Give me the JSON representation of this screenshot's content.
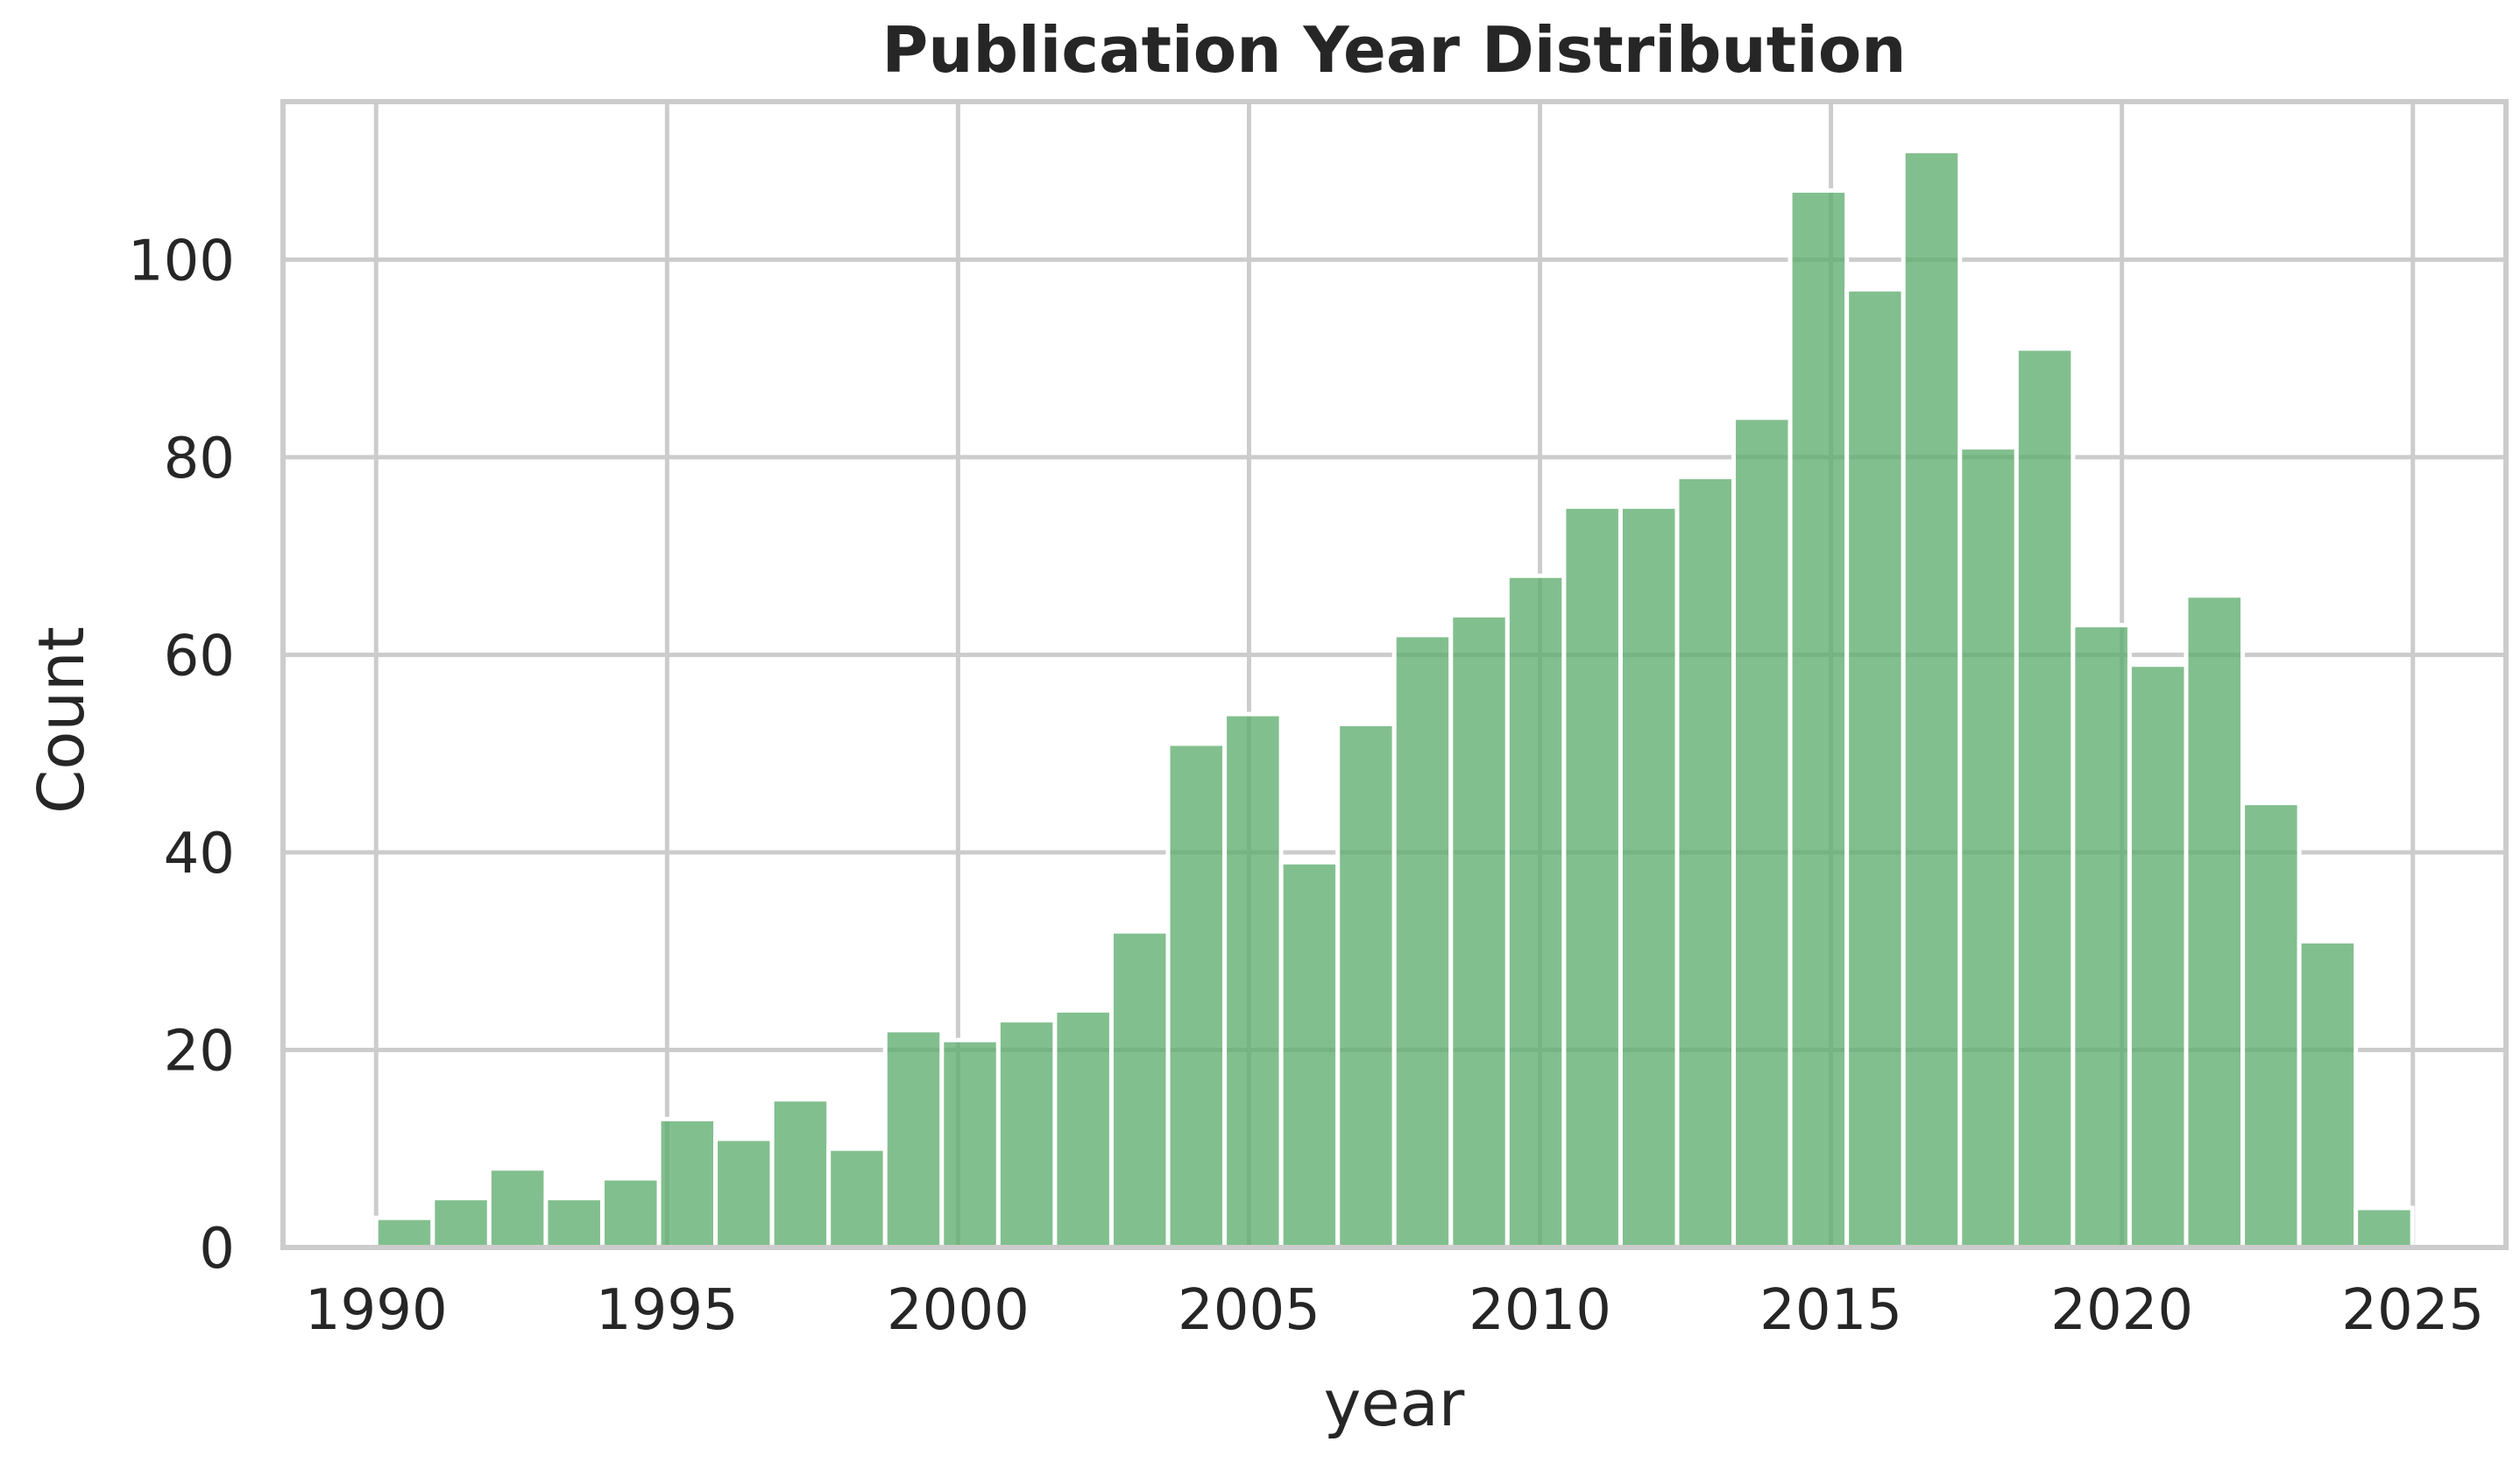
{
  "chart_data": {
    "type": "bar",
    "title": "Publication Year Distribution",
    "xlabel": "year",
    "ylabel": "Count",
    "xlim": [
      1988.4,
      2026.6
    ],
    "ylim": [
      0,
      116
    ],
    "x_ticks": [
      1990,
      1995,
      2000,
      2005,
      2010,
      2015,
      2020,
      2025
    ],
    "y_ticks": [
      0,
      20,
      40,
      60,
      80,
      100
    ],
    "grid": true,
    "bin_edges_start": 1990,
    "bin_width": 0.972,
    "values": [
      3,
      5,
      8,
      5,
      7,
      13,
      11,
      15,
      10,
      22,
      21,
      23,
      24,
      32,
      51,
      54,
      39,
      53,
      62,
      64,
      68,
      75,
      75,
      78,
      84,
      107,
      97,
      111,
      81,
      91,
      63,
      59,
      66,
      45,
      31,
      4
    ],
    "colors": {
      "bar": "#5fad6e",
      "bar_opacity": 0.78,
      "grid": "#cccccc",
      "spine": "#cccccc",
      "text": "#262626"
    }
  }
}
